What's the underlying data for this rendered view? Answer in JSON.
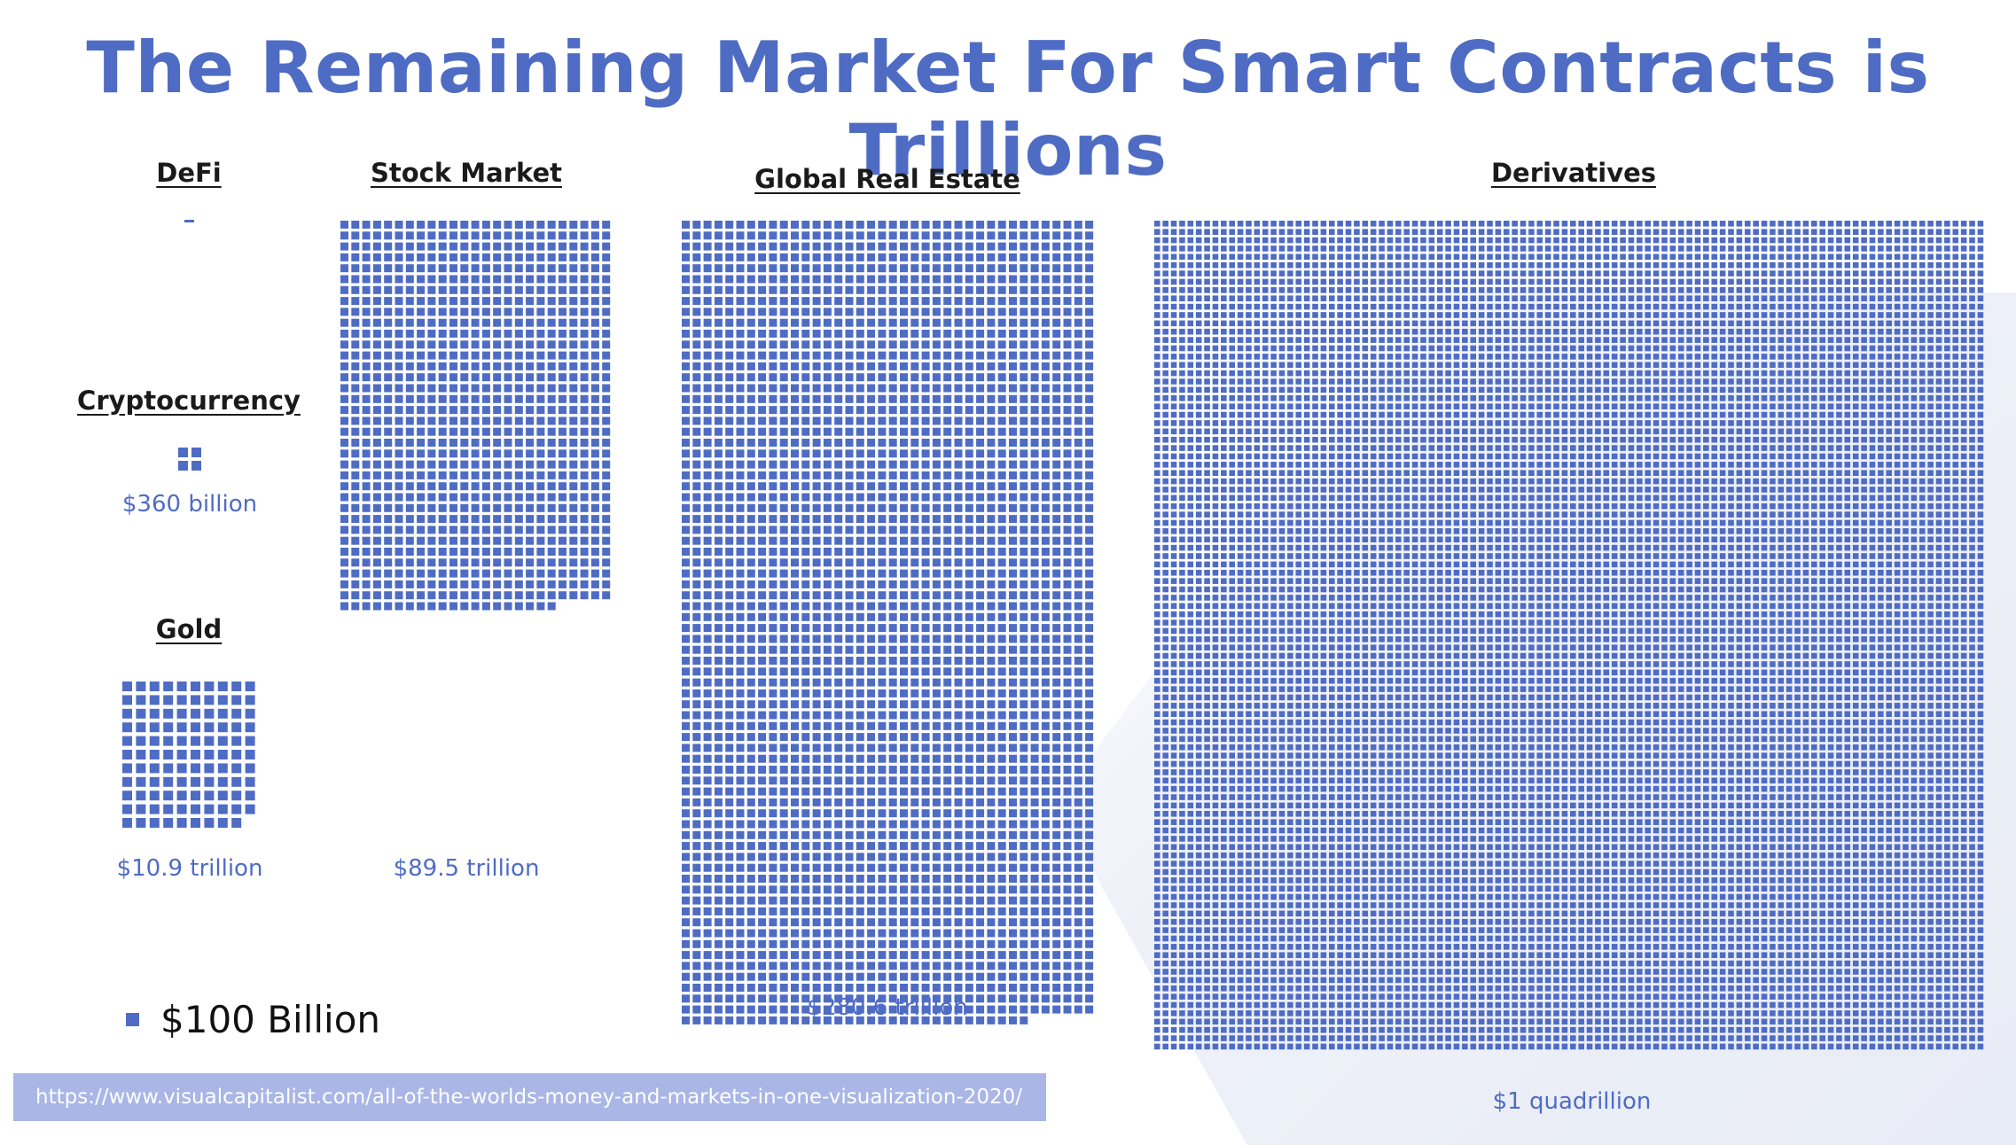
{
  "title": "The Remaining Market For Smart Contracts is Trillions",
  "legend": {
    "unit_label": "$100 Billion",
    "color": "#4f6cc4"
  },
  "source": "https://www.visualcapitalist.com/all-of-the-worlds-money-and-markets-in-one-visualization-2020/",
  "colors": {
    "accent": "#4f6cc4",
    "source_bar": "#a9b6e6"
  },
  "chart_data": {
    "type": "unit-grid",
    "unit_value": "$100 Billion",
    "categories": [
      "DeFi",
      "Cryptocurrency",
      "Gold",
      "Stock Market",
      "Global Real Estate",
      "Derivatives"
    ],
    "value_labels": [
      "",
      "$360 billion",
      "$10.9 trillion",
      "$89.5 trillion",
      "$280.6 trillion",
      "$1 quadrillion"
    ],
    "values_trillion_usd": [
      0.1,
      0.36,
      10.9,
      89.5,
      280.6,
      1000
    ],
    "units": [
      1,
      4,
      109,
      895,
      2806,
      10000
    ]
  }
}
